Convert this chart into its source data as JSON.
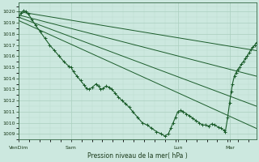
{
  "bg_color": "#cce8df",
  "grid_major_color": "#aacfbf",
  "grid_minor_color": "#bbddd0",
  "line_color": "#1a5c2a",
  "ylabel_text": "Pression niveau de la mer( hPa )",
  "ylim": [
    1008.5,
    1020.8
  ],
  "yticks": [
    1009,
    1010,
    1011,
    1012,
    1013,
    1014,
    1015,
    1016,
    1017,
    1018,
    1019,
    1020
  ],
  "xtick_labels": [
    "VenDim",
    "Sam",
    "Lun",
    "Mar"
  ],
  "xtick_positions": [
    0,
    0.22,
    0.67,
    0.89
  ],
  "xlim": [
    0,
    1.0
  ],
  "straight_lines": [
    [
      [
        0,
        1020.0
      ],
      [
        1.0,
        1016.5
      ]
    ],
    [
      [
        0,
        1019.7
      ],
      [
        1.0,
        1014.2
      ]
    ],
    [
      [
        0,
        1019.5
      ],
      [
        1.0,
        1011.5
      ]
    ],
    [
      [
        0,
        1019.2
      ],
      [
        1.0,
        1009.5
      ]
    ]
  ],
  "wavy": [
    [
      0.0,
      1019.5
    ],
    [
      0.01,
      1019.9
    ],
    [
      0.02,
      1020.1
    ],
    [
      0.03,
      1020.0
    ],
    [
      0.04,
      1019.8
    ],
    [
      0.055,
      1019.3
    ],
    [
      0.07,
      1018.8
    ],
    [
      0.09,
      1018.2
    ],
    [
      0.11,
      1017.6
    ],
    [
      0.13,
      1017.0
    ],
    [
      0.15,
      1016.5
    ],
    [
      0.17,
      1016.0
    ],
    [
      0.19,
      1015.5
    ],
    [
      0.21,
      1015.1
    ],
    [
      0.22,
      1015.0
    ],
    [
      0.23,
      1014.6
    ],
    [
      0.245,
      1014.2
    ],
    [
      0.26,
      1013.8
    ],
    [
      0.275,
      1013.4
    ],
    [
      0.285,
      1013.1
    ],
    [
      0.295,
      1013.0
    ],
    [
      0.31,
      1013.2
    ],
    [
      0.325,
      1013.5
    ],
    [
      0.335,
      1013.3
    ],
    [
      0.345,
      1013.0
    ],
    [
      0.355,
      1013.1
    ],
    [
      0.368,
      1013.3
    ],
    [
      0.38,
      1013.2
    ],
    [
      0.392,
      1013.0
    ],
    [
      0.405,
      1012.7
    ],
    [
      0.42,
      1012.3
    ],
    [
      0.435,
      1012.0
    ],
    [
      0.45,
      1011.7
    ],
    [
      0.465,
      1011.4
    ],
    [
      0.48,
      1011.0
    ],
    [
      0.5,
      1010.5
    ],
    [
      0.52,
      1010.0
    ],
    [
      0.54,
      1009.8
    ],
    [
      0.56,
      1009.5
    ],
    [
      0.58,
      1009.2
    ],
    [
      0.6,
      1009.0
    ],
    [
      0.615,
      1008.8
    ],
    [
      0.63,
      1009.0
    ],
    [
      0.64,
      1009.5
    ],
    [
      0.65,
      1010.0
    ],
    [
      0.66,
      1010.5
    ],
    [
      0.67,
      1011.0
    ],
    [
      0.68,
      1011.1
    ],
    [
      0.693,
      1011.0
    ],
    [
      0.706,
      1010.8
    ],
    [
      0.72,
      1010.6
    ],
    [
      0.733,
      1010.4
    ],
    [
      0.746,
      1010.2
    ],
    [
      0.76,
      1010.0
    ],
    [
      0.773,
      1009.8
    ],
    [
      0.786,
      1009.8
    ],
    [
      0.8,
      1009.7
    ],
    [
      0.813,
      1009.9
    ],
    [
      0.826,
      1009.8
    ],
    [
      0.84,
      1009.6
    ],
    [
      0.853,
      1009.5
    ],
    [
      0.866,
      1009.3
    ],
    [
      0.87,
      1009.2
    ],
    [
      0.88,
      1010.5
    ],
    [
      0.888,
      1011.8
    ],
    [
      0.895,
      1012.8
    ],
    [
      0.9,
      1013.5
    ],
    [
      0.908,
      1014.2
    ],
    [
      0.915,
      1014.5
    ],
    [
      0.922,
      1014.8
    ],
    [
      0.93,
      1015.0
    ],
    [
      0.938,
      1015.3
    ],
    [
      0.946,
      1015.5
    ],
    [
      0.954,
      1015.8
    ],
    [
      0.962,
      1016.0
    ],
    [
      0.97,
      1016.3
    ],
    [
      0.978,
      1016.6
    ],
    [
      0.986,
      1016.8
    ],
    [
      0.994,
      1017.0
    ],
    [
      1.0,
      1017.2
    ]
  ]
}
